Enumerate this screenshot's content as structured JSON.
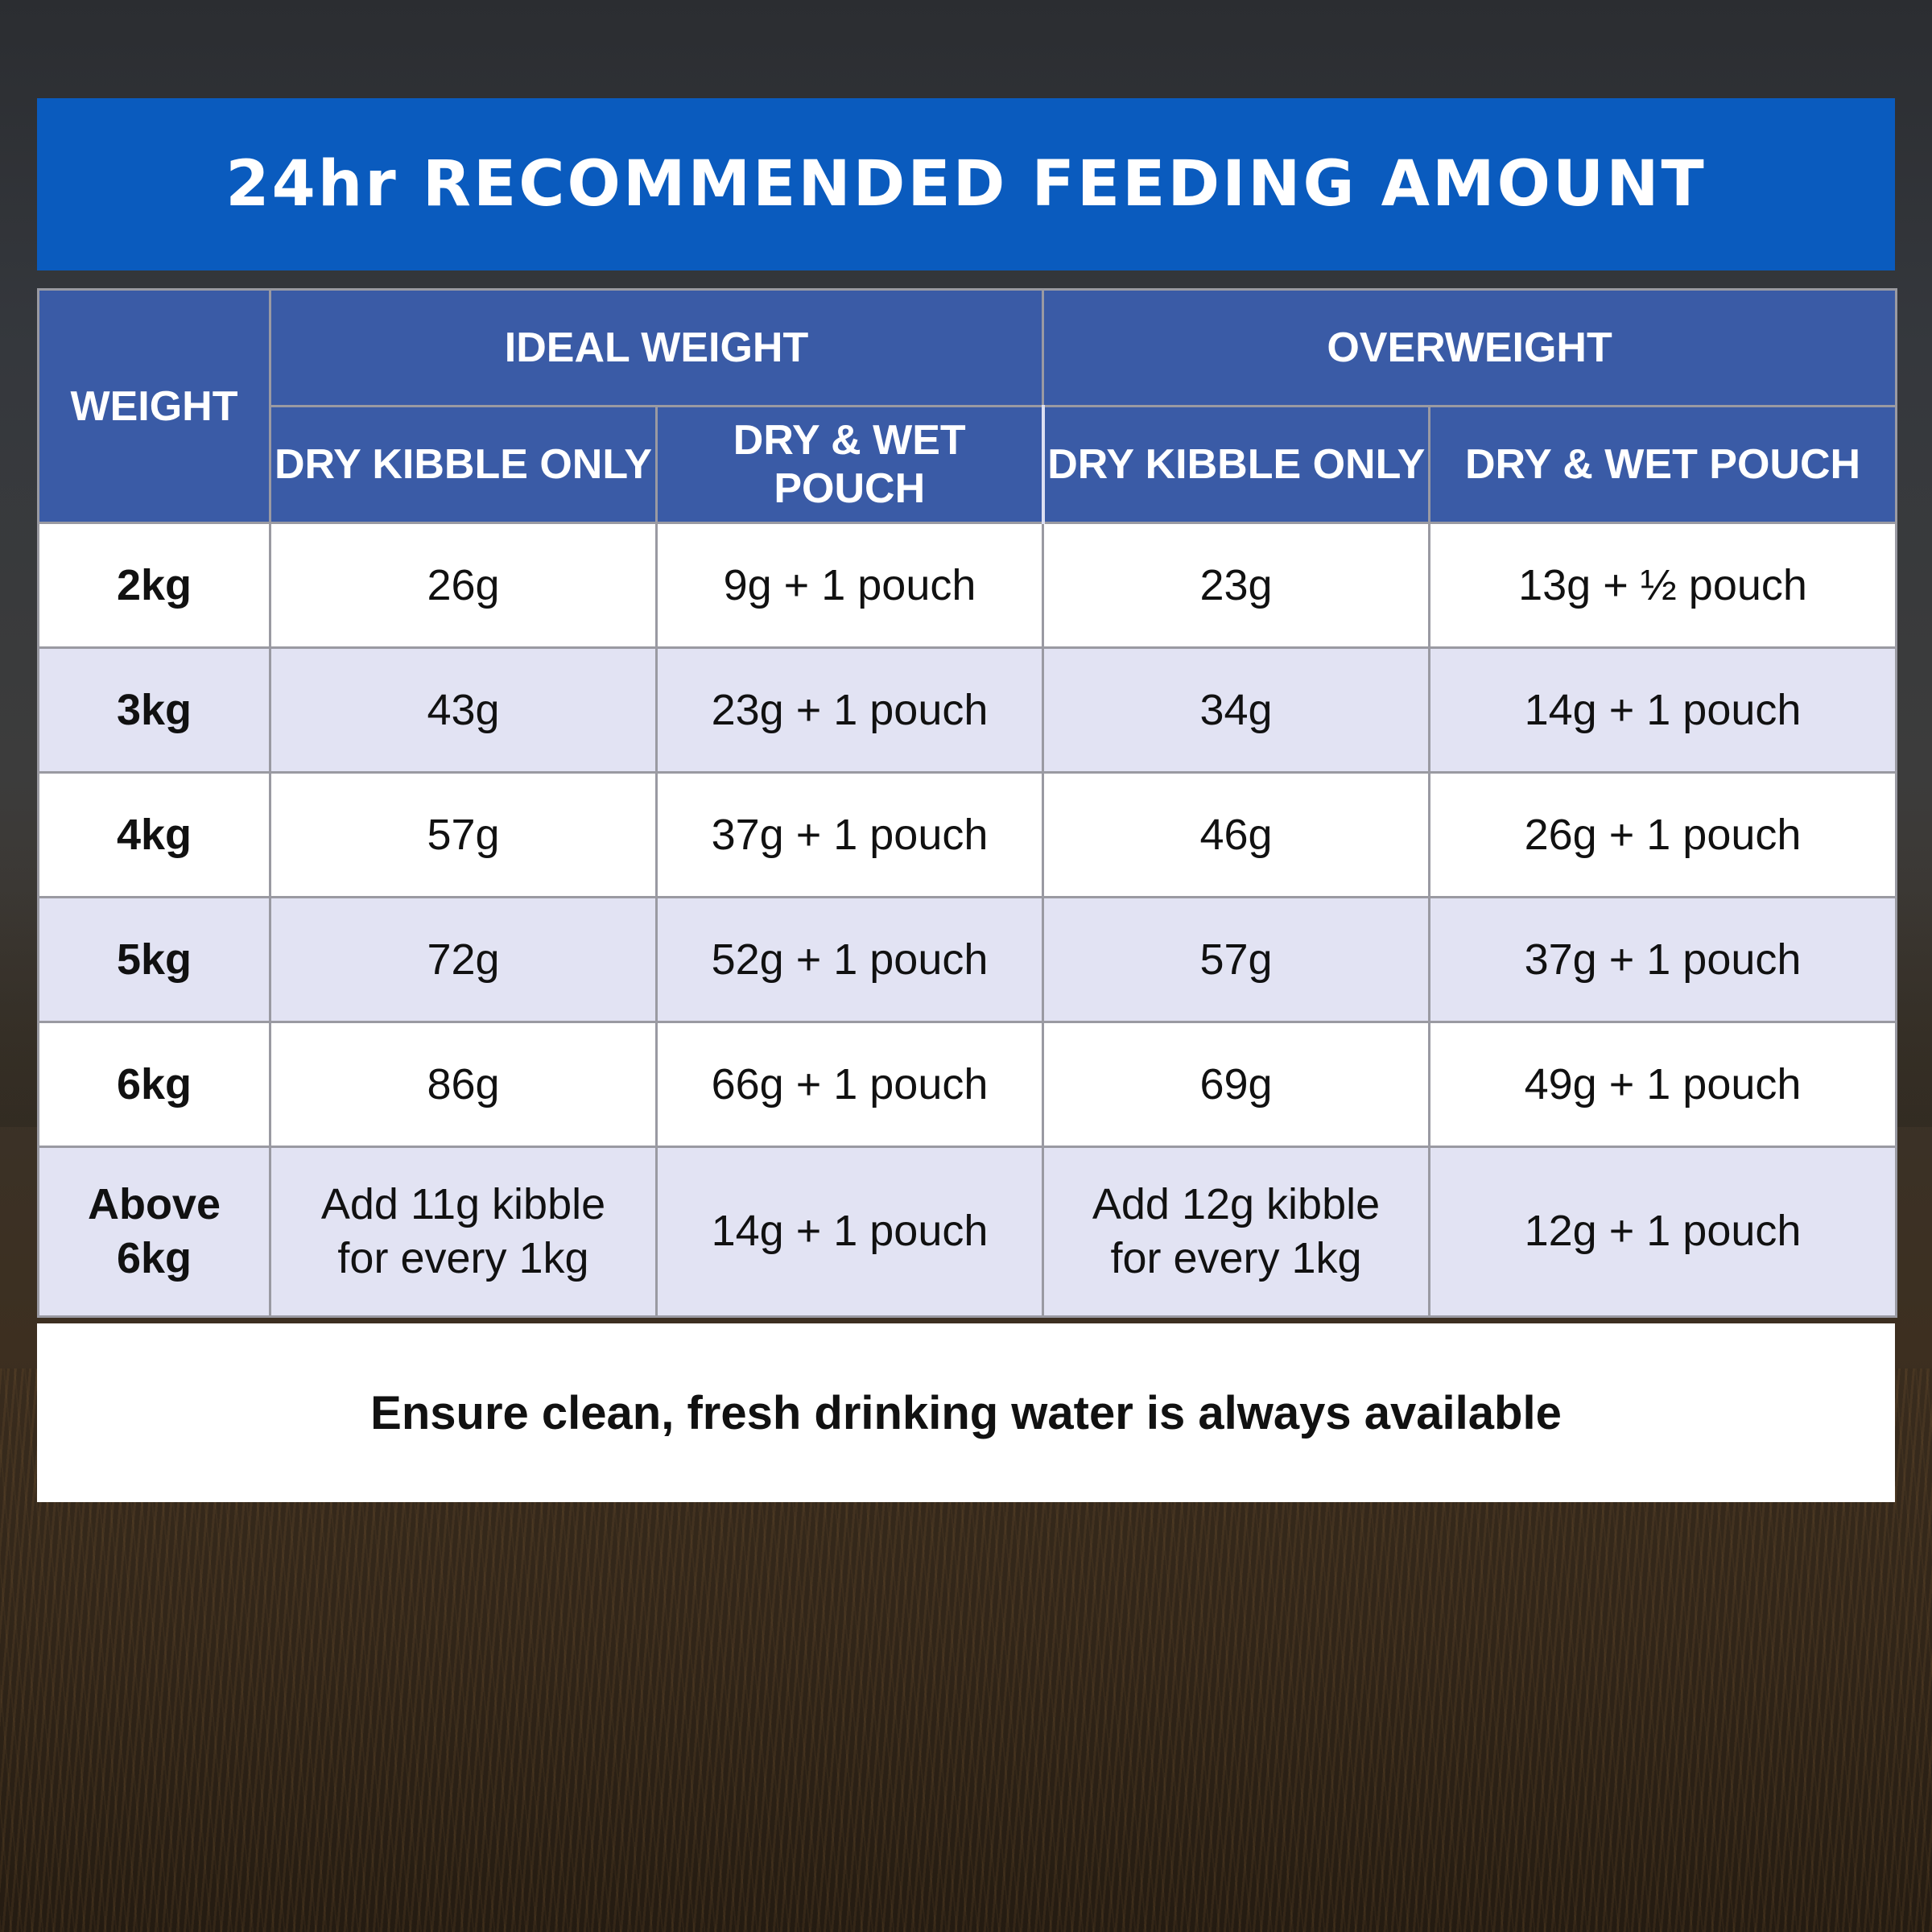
{
  "title": "24hr RECOMMENDED FEEDING AMOUNT",
  "header": {
    "weight": "WEIGHT",
    "group_ideal": "IDEAL WEIGHT",
    "group_over": "OVERWEIGHT",
    "ideal_dry": "DRY KIBBLE ONLY",
    "ideal_wet": "DRY & WET POUCH",
    "over_dry": "DRY KIBBLE ONLY",
    "over_wet": "DRY & WET POUCH"
  },
  "rows": [
    {
      "weight": "2kg",
      "ideal_dry": "26g",
      "ideal_wet": "9g + 1 pouch",
      "over_dry": "23g",
      "over_wet": "13g + ½ pouch"
    },
    {
      "weight": "3kg",
      "ideal_dry": "43g",
      "ideal_wet": "23g + 1 pouch",
      "over_dry": "34g",
      "over_wet": "14g + 1 pouch"
    },
    {
      "weight": "4kg",
      "ideal_dry": "57g",
      "ideal_wet": "37g + 1 pouch",
      "over_dry": "46g",
      "over_wet": "26g + 1 pouch"
    },
    {
      "weight": "5kg",
      "ideal_dry": "72g",
      "ideal_wet": "52g + 1 pouch",
      "over_dry": "57g",
      "over_wet": "37g + 1 pouch"
    },
    {
      "weight": "6kg",
      "ideal_dry": "86g",
      "ideal_wet": "66g + 1 pouch",
      "over_dry": "69g",
      "over_wet": "49g + 1 pouch"
    },
    {
      "weight_line1": "Above",
      "weight_line2": "6kg",
      "ideal_dry_line1": "Add 11g kibble",
      "ideal_dry_line2": "for every 1kg",
      "ideal_wet": "14g + 1 pouch",
      "over_dry_line1": "Add 12g kibble",
      "over_dry_line2": "for every 1kg",
      "over_wet": "12g + 1 pouch"
    }
  ],
  "footer": "Ensure clean, fresh drinking water is always available",
  "colors": {
    "title_bar": "#0a5bbe",
    "table_header": "#3a5ba6",
    "row_alt": "#e2e3f3"
  }
}
